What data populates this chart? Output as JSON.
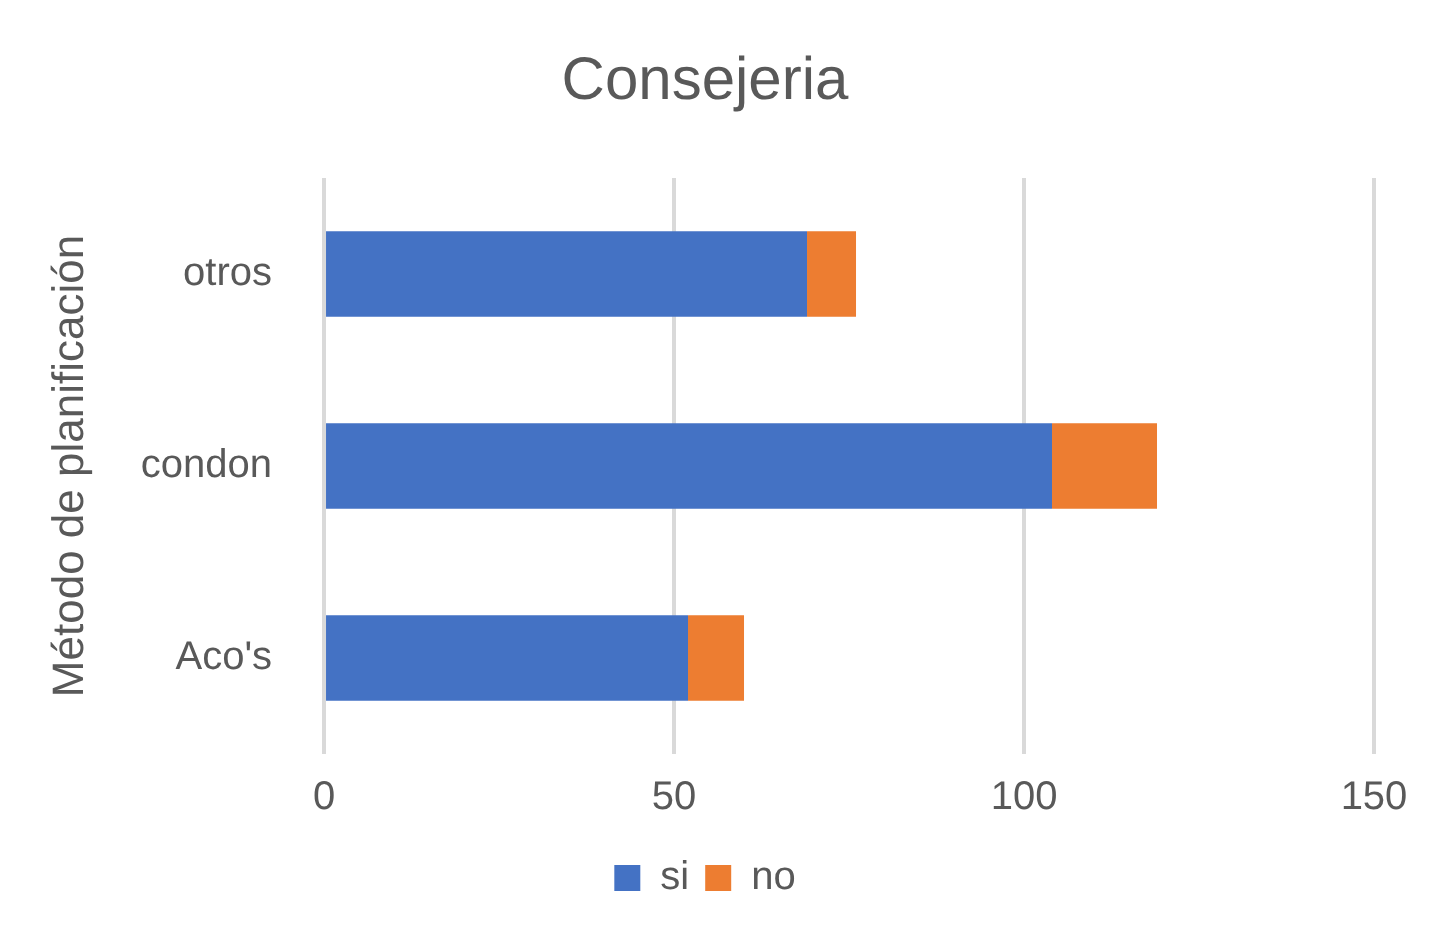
{
  "chart_data": {
    "type": "bar",
    "orientation": "horizontal",
    "stacked": true,
    "title": "Consejeria",
    "ylabel": "Método de planificación",
    "categories": [
      "otros",
      "condon",
      "Aco's"
    ],
    "series": [
      {
        "name": "si",
        "color": "#4472c4",
        "values": [
          69,
          104,
          52
        ]
      },
      {
        "name": "no",
        "color": "#ed7d31",
        "values": [
          7,
          15,
          8
        ]
      }
    ],
    "xlim": [
      0,
      150
    ],
    "xticks": [
      0,
      50,
      100,
      150
    ],
    "grid": "x",
    "legend": "bottom"
  }
}
